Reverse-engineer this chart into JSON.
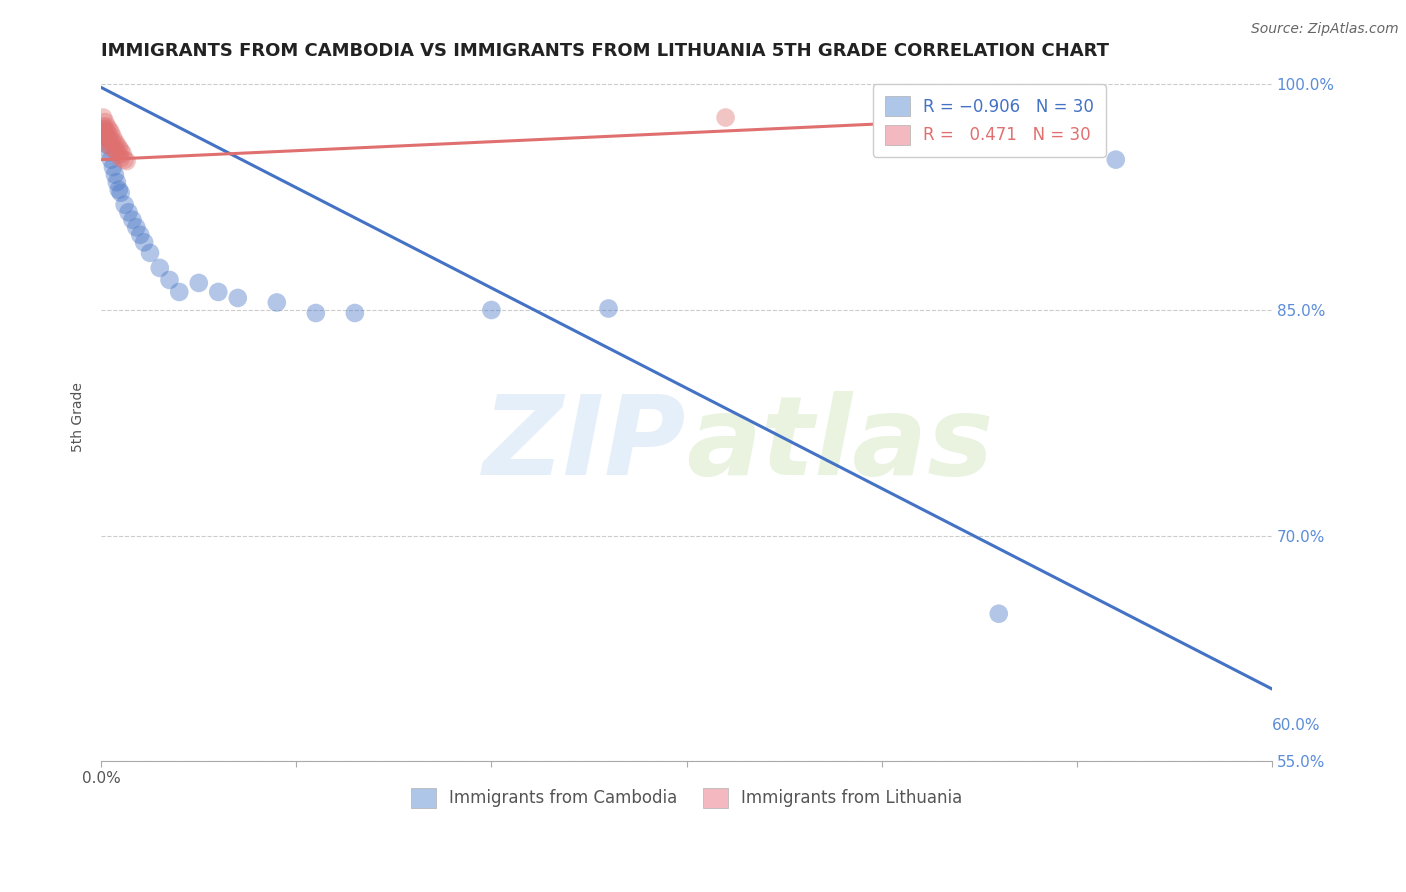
{
  "title": "IMMIGRANTS FROM CAMBODIA VS IMMIGRANTS FROM LITHUANIA 5TH GRADE CORRELATION CHART",
  "source": "Source: ZipAtlas.com",
  "ylabel": "5th Grade",
  "xlim": [
    0.0,
    0.6
  ],
  "ylim": [
    0.578,
    1.008
  ],
  "yticks": [
    1.0,
    0.85,
    0.7,
    0.55
  ],
  "ytick_labels": [
    "100.0%",
    "85.0%",
    "70.0%",
    "55.0%"
  ],
  "watermark": "ZIPatlas",
  "blue_scatter_x": [
    0.001,
    0.002,
    0.003,
    0.004,
    0.005,
    0.006,
    0.007,
    0.008,
    0.009,
    0.01,
    0.012,
    0.014,
    0.016,
    0.018,
    0.02,
    0.022,
    0.025,
    0.03,
    0.035,
    0.04,
    0.05,
    0.06,
    0.07,
    0.09,
    0.11,
    0.13,
    0.2,
    0.26,
    0.46,
    0.52
  ],
  "blue_scatter_y": [
    0.97,
    0.965,
    0.96,
    0.955,
    0.95,
    0.945,
    0.94,
    0.935,
    0.93,
    0.928,
    0.92,
    0.915,
    0.91,
    0.905,
    0.9,
    0.895,
    0.888,
    0.878,
    0.87,
    0.862,
    0.868,
    0.862,
    0.858,
    0.855,
    0.848,
    0.848,
    0.85,
    0.851,
    0.648,
    0.95
  ],
  "pink_scatter_x": [
    0.001,
    0.001,
    0.001,
    0.002,
    0.002,
    0.002,
    0.003,
    0.003,
    0.003,
    0.004,
    0.004,
    0.004,
    0.005,
    0.005,
    0.005,
    0.006,
    0.006,
    0.007,
    0.007,
    0.008,
    0.008,
    0.009,
    0.009,
    0.01,
    0.01,
    0.011,
    0.012,
    0.013,
    0.32,
    0.47
  ],
  "pink_scatter_y": [
    0.978,
    0.972,
    0.968,
    0.975,
    0.97,
    0.965,
    0.972,
    0.968,
    0.963,
    0.97,
    0.965,
    0.96,
    0.968,
    0.963,
    0.958,
    0.965,
    0.96,
    0.962,
    0.957,
    0.96,
    0.955,
    0.958,
    0.953,
    0.956,
    0.951,
    0.954,
    0.95,
    0.949,
    0.978,
    0.978
  ],
  "blue_line_x": [
    0.0,
    0.6
  ],
  "blue_line_y": [
    0.998,
    0.598
  ],
  "pink_line_x": [
    0.0,
    0.47
  ],
  "pink_line_y": [
    0.95,
    0.978
  ],
  "scatter_size": 180,
  "scatter_alpha": 0.4,
  "line_color_blue": "#4472c4",
  "line_color_pink": "#e07070",
  "grid_color": "#cccccc",
  "grid_linestyle": "--",
  "title_fontsize": 13,
  "tick_color_right": "#5b8dd9",
  "background_color": "#ffffff"
}
